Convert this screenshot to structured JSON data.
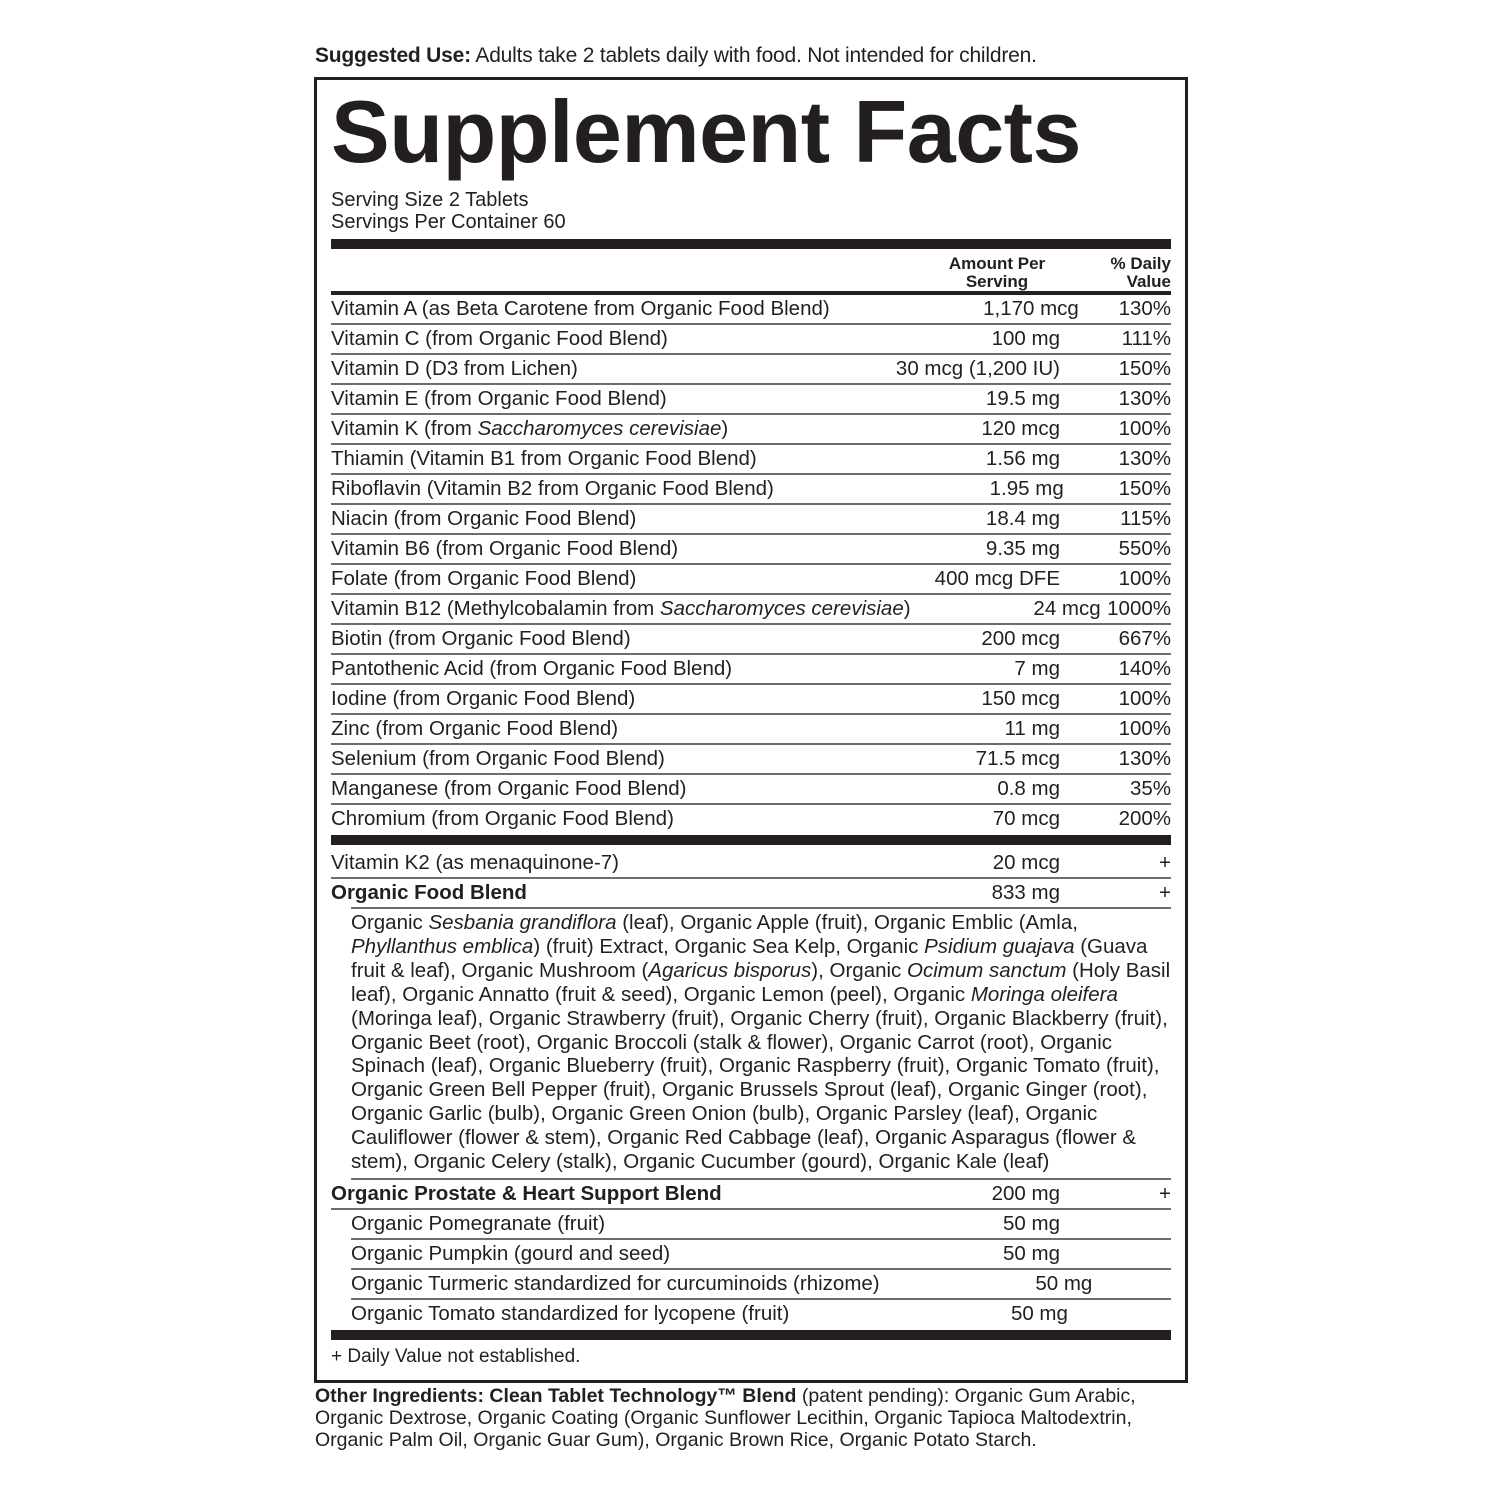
{
  "suggested_use": {
    "label": "Suggested Use:",
    "text": " Adults take 2 tablets daily with food. Not intended for children."
  },
  "title": "Supplement Facts",
  "serving_size": "Serving Size 2 Tablets",
  "servings_per_container": "Servings Per Container 60",
  "headers": {
    "amount": "Amount Per Serving",
    "dv": "% Daily Value"
  },
  "nutrients": [
    {
      "pre": "Vitamin A (as Beta Carotene from Organic Food Blend)",
      "it": "",
      "post": "",
      "amount": "1,170 mcg",
      "dv": "130%"
    },
    {
      "pre": "Vitamin C (from Organic Food Blend)",
      "it": "",
      "post": "",
      "amount": "100 mg",
      "dv": "111%"
    },
    {
      "pre": "Vitamin D (D3 from Lichen)",
      "it": "",
      "post": "",
      "amount": "30 mcg (1,200 IU)",
      "dv": "150%"
    },
    {
      "pre": "Vitamin E (from Organic Food Blend)",
      "it": "",
      "post": "",
      "amount": "19.5 mg",
      "dv": "130%"
    },
    {
      "pre": "Vitamin K (from ",
      "it": "Saccharomyces cerevisiae",
      "post": ")",
      "amount": "120 mcg",
      "dv": "100%"
    },
    {
      "pre": "Thiamin (Vitamin B1 from Organic Food Blend)",
      "it": "",
      "post": "",
      "amount": "1.56 mg",
      "dv": "130%"
    },
    {
      "pre": "Riboflavin (Vitamin B2 from Organic Food Blend)",
      "it": "",
      "post": "",
      "amount": "1.95 mg",
      "dv": "150%"
    },
    {
      "pre": "Niacin (from Organic Food Blend)",
      "it": "",
      "post": "",
      "amount": "18.4 mg",
      "dv": "115%"
    },
    {
      "pre": "Vitamin B6 (from Organic Food Blend)",
      "it": "",
      "post": "",
      "amount": "9.35 mg",
      "dv": "550%"
    },
    {
      "pre": "Folate (from Organic Food Blend)",
      "it": "",
      "post": "",
      "amount": "400 mcg DFE",
      "dv": "100%"
    },
    {
      "pre": "Vitamin B12 (Methylcobalamin from ",
      "it": "Saccharomyces cerevisiae",
      "post": ")",
      "amount": "24 mcg",
      "dv": "1000%"
    },
    {
      "pre": "Biotin (from Organic Food Blend)",
      "it": "",
      "post": "",
      "amount": "200 mcg",
      "dv": "667%"
    },
    {
      "pre": "Pantothenic Acid (from Organic Food Blend)",
      "it": "",
      "post": "",
      "amount": "7 mg",
      "dv": "140%"
    },
    {
      "pre": "Iodine (from Organic Food Blend)",
      "it": "",
      "post": "",
      "amount": "150 mcg",
      "dv": "100%"
    },
    {
      "pre": "Zinc (from Organic Food Blend)",
      "it": "",
      "post": "",
      "amount": "11 mg",
      "dv": "100%"
    },
    {
      "pre": "Selenium (from Organic Food Blend)",
      "it": "",
      "post": "",
      "amount": "71.5 mcg",
      "dv": "130%"
    },
    {
      "pre": "Manganese (from Organic Food Blend)",
      "it": "",
      "post": "",
      "amount": "0.8 mg",
      "dv": "35%"
    },
    {
      "pre": "Chromium (from Organic Food Blend)",
      "it": "",
      "post": "",
      "amount": "70 mcg",
      "dv": "200%"
    }
  ],
  "k2": {
    "name": "Vitamin K2 (as menaquinone-7)",
    "amount": "20 mcg",
    "dv": "+"
  },
  "food_blend": {
    "name": "Organic Food Blend",
    "amount": "833 mg",
    "dv": "+",
    "ingredients": [
      {
        "t": "Organic ",
        "i": false
      },
      {
        "t": "Sesbania grandiflora",
        "i": true
      },
      {
        "t": " (leaf), Organic Apple (fruit), Organic Emblic (Amla, ",
        "i": false
      },
      {
        "t": "Phyllanthus emblica",
        "i": true
      },
      {
        "t": ") (fruit) Extract, Organic Sea Kelp, Organic ",
        "i": false
      },
      {
        "t": "Psidium guajava",
        "i": true
      },
      {
        "t": " (Guava fruit & leaf), Organic Mushroom (",
        "i": false
      },
      {
        "t": "Agaricus bisporus",
        "i": true
      },
      {
        "t": "), Organic ",
        "i": false
      },
      {
        "t": "Ocimum sanctum",
        "i": true
      },
      {
        "t": " (Holy Basil leaf), Organic Annatto (fruit & seed), Organic Lemon (peel), Organic ",
        "i": false
      },
      {
        "t": "Moringa oleifera",
        "i": true
      },
      {
        "t": " (Moringa leaf), Organic Strawberry (fruit), Organic Cherry (fruit), Organic Blackberry (fruit), Organic Beet (root), Organic Broccoli (stalk & flower), Organic Carrot (root), Organic Spinach (leaf), Organic Blueberry (fruit), Organic Raspberry (fruit), Organic Tomato (fruit), Organic Green Bell Pepper (fruit), Organic Brussels Sprout (leaf), Organic Ginger (root), Organic Garlic (bulb), Organic Green Onion (bulb), Organic Parsley (leaf), Organic Cauliflower (flower & stem), Organic Red Cabbage (leaf), Organic Asparagus (flower & stem), Organic Celery (stalk), Organic Cucumber (gourd), Organic Kale (leaf)",
        "i": false
      }
    ]
  },
  "prostate_blend": {
    "name": "Organic Prostate & Heart Support Blend",
    "amount": "200 mg",
    "dv": "+",
    "items": [
      {
        "name": "Organic Pomegranate (fruit)",
        "amount": "50 mg"
      },
      {
        "name": "Organic Pumpkin (gourd and seed)",
        "amount": "50 mg"
      },
      {
        "name": "Organic Turmeric standardized for curcuminoids (rhizome)",
        "amount": "50 mg"
      },
      {
        "name": "Organic Tomato standardized for lycopene (fruit)",
        "amount": "50 mg"
      }
    ]
  },
  "footnote": "+ Daily Value not established.",
  "other_ingredients": {
    "label": "Other Ingredients: Clean Tablet Technology™ Blend",
    "text": " (patent pending): Organic Gum Arabic, Organic Dextrose, Organic Coating (Organic Sunflower Lecithin, Organic Tapioca Maltodextrin, Organic Palm Oil, Organic Guar Gum), Organic Brown Rice, Organic Potato Starch."
  }
}
